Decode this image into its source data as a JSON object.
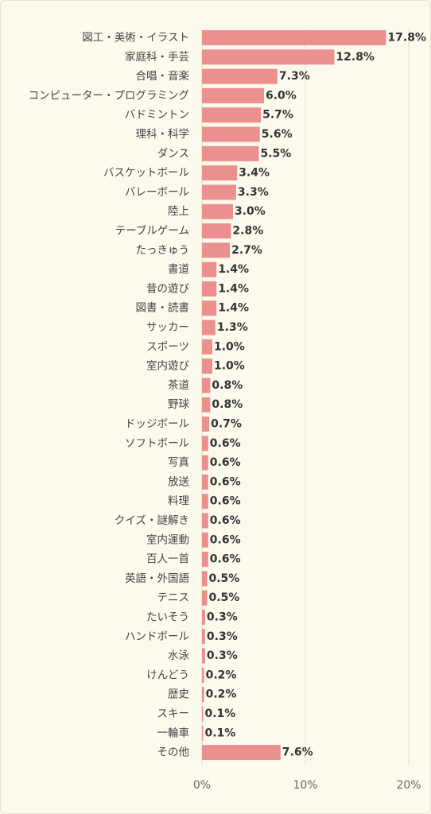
{
  "chart_data": {
    "type": "bar",
    "orientation": "horizontal",
    "categories": [
      "図工・美術・イラスト",
      "家庭科・手芸",
      "合唱・音楽",
      "コンピューター・プログラミング",
      "バドミントン",
      "理科・科学",
      "ダンス",
      "バスケットボール",
      "バレーボール",
      "陸上",
      "テーブルゲーム",
      "たっきゅう",
      "書道",
      "昔の遊び",
      "図書・読書",
      "サッカー",
      "スポーツ",
      "室内遊び",
      "茶道",
      "野球",
      "ドッジボール",
      "ソフトボール",
      "写真",
      "放送",
      "料理",
      "クイズ・謎解き",
      "室内運動",
      "百人一首",
      "英語・外国語",
      "テニス",
      "たいそう",
      "ハンドボール",
      "水泳",
      "けんどう",
      "歴史",
      "スキー",
      "一輪車",
      "その他"
    ],
    "values": [
      17.8,
      12.8,
      7.3,
      6.0,
      5.7,
      5.6,
      5.5,
      3.4,
      3.3,
      3.0,
      2.8,
      2.7,
      1.4,
      1.4,
      1.4,
      1.3,
      1.0,
      1.0,
      0.8,
      0.8,
      0.7,
      0.6,
      0.6,
      0.6,
      0.6,
      0.6,
      0.6,
      0.6,
      0.5,
      0.5,
      0.3,
      0.3,
      0.3,
      0.2,
      0.2,
      0.1,
      0.1,
      7.6
    ],
    "value_labels": [
      "17.8%",
      "12.8%",
      "7.3%",
      "6.0%",
      "5.7%",
      "5.6%",
      "5.5%",
      "3.4%",
      "3.3%",
      "3.0%",
      "2.8%",
      "2.7%",
      "1.4%",
      "1.4%",
      "1.4%",
      "1.3%",
      "1.0%",
      "1.0%",
      "0.8%",
      "0.8%",
      "0.7%",
      "0.6%",
      "0.6%",
      "0.6%",
      "0.6%",
      "0.6%",
      "0.6%",
      "0.6%",
      "0.5%",
      "0.5%",
      "0.3%",
      "0.3%",
      "0.3%",
      "0.2%",
      "0.2%",
      "0.1%",
      "0.1%",
      "7.6%"
    ],
    "xlim": [
      0,
      20
    ],
    "xticks": [
      0,
      10,
      20
    ],
    "xtick_labels": [
      "0%",
      "10%",
      "20%"
    ],
    "grid": true,
    "bar_color": "#ec8f8f",
    "grid_color": "#dcdcdc",
    "background": "#fcfaec"
  }
}
